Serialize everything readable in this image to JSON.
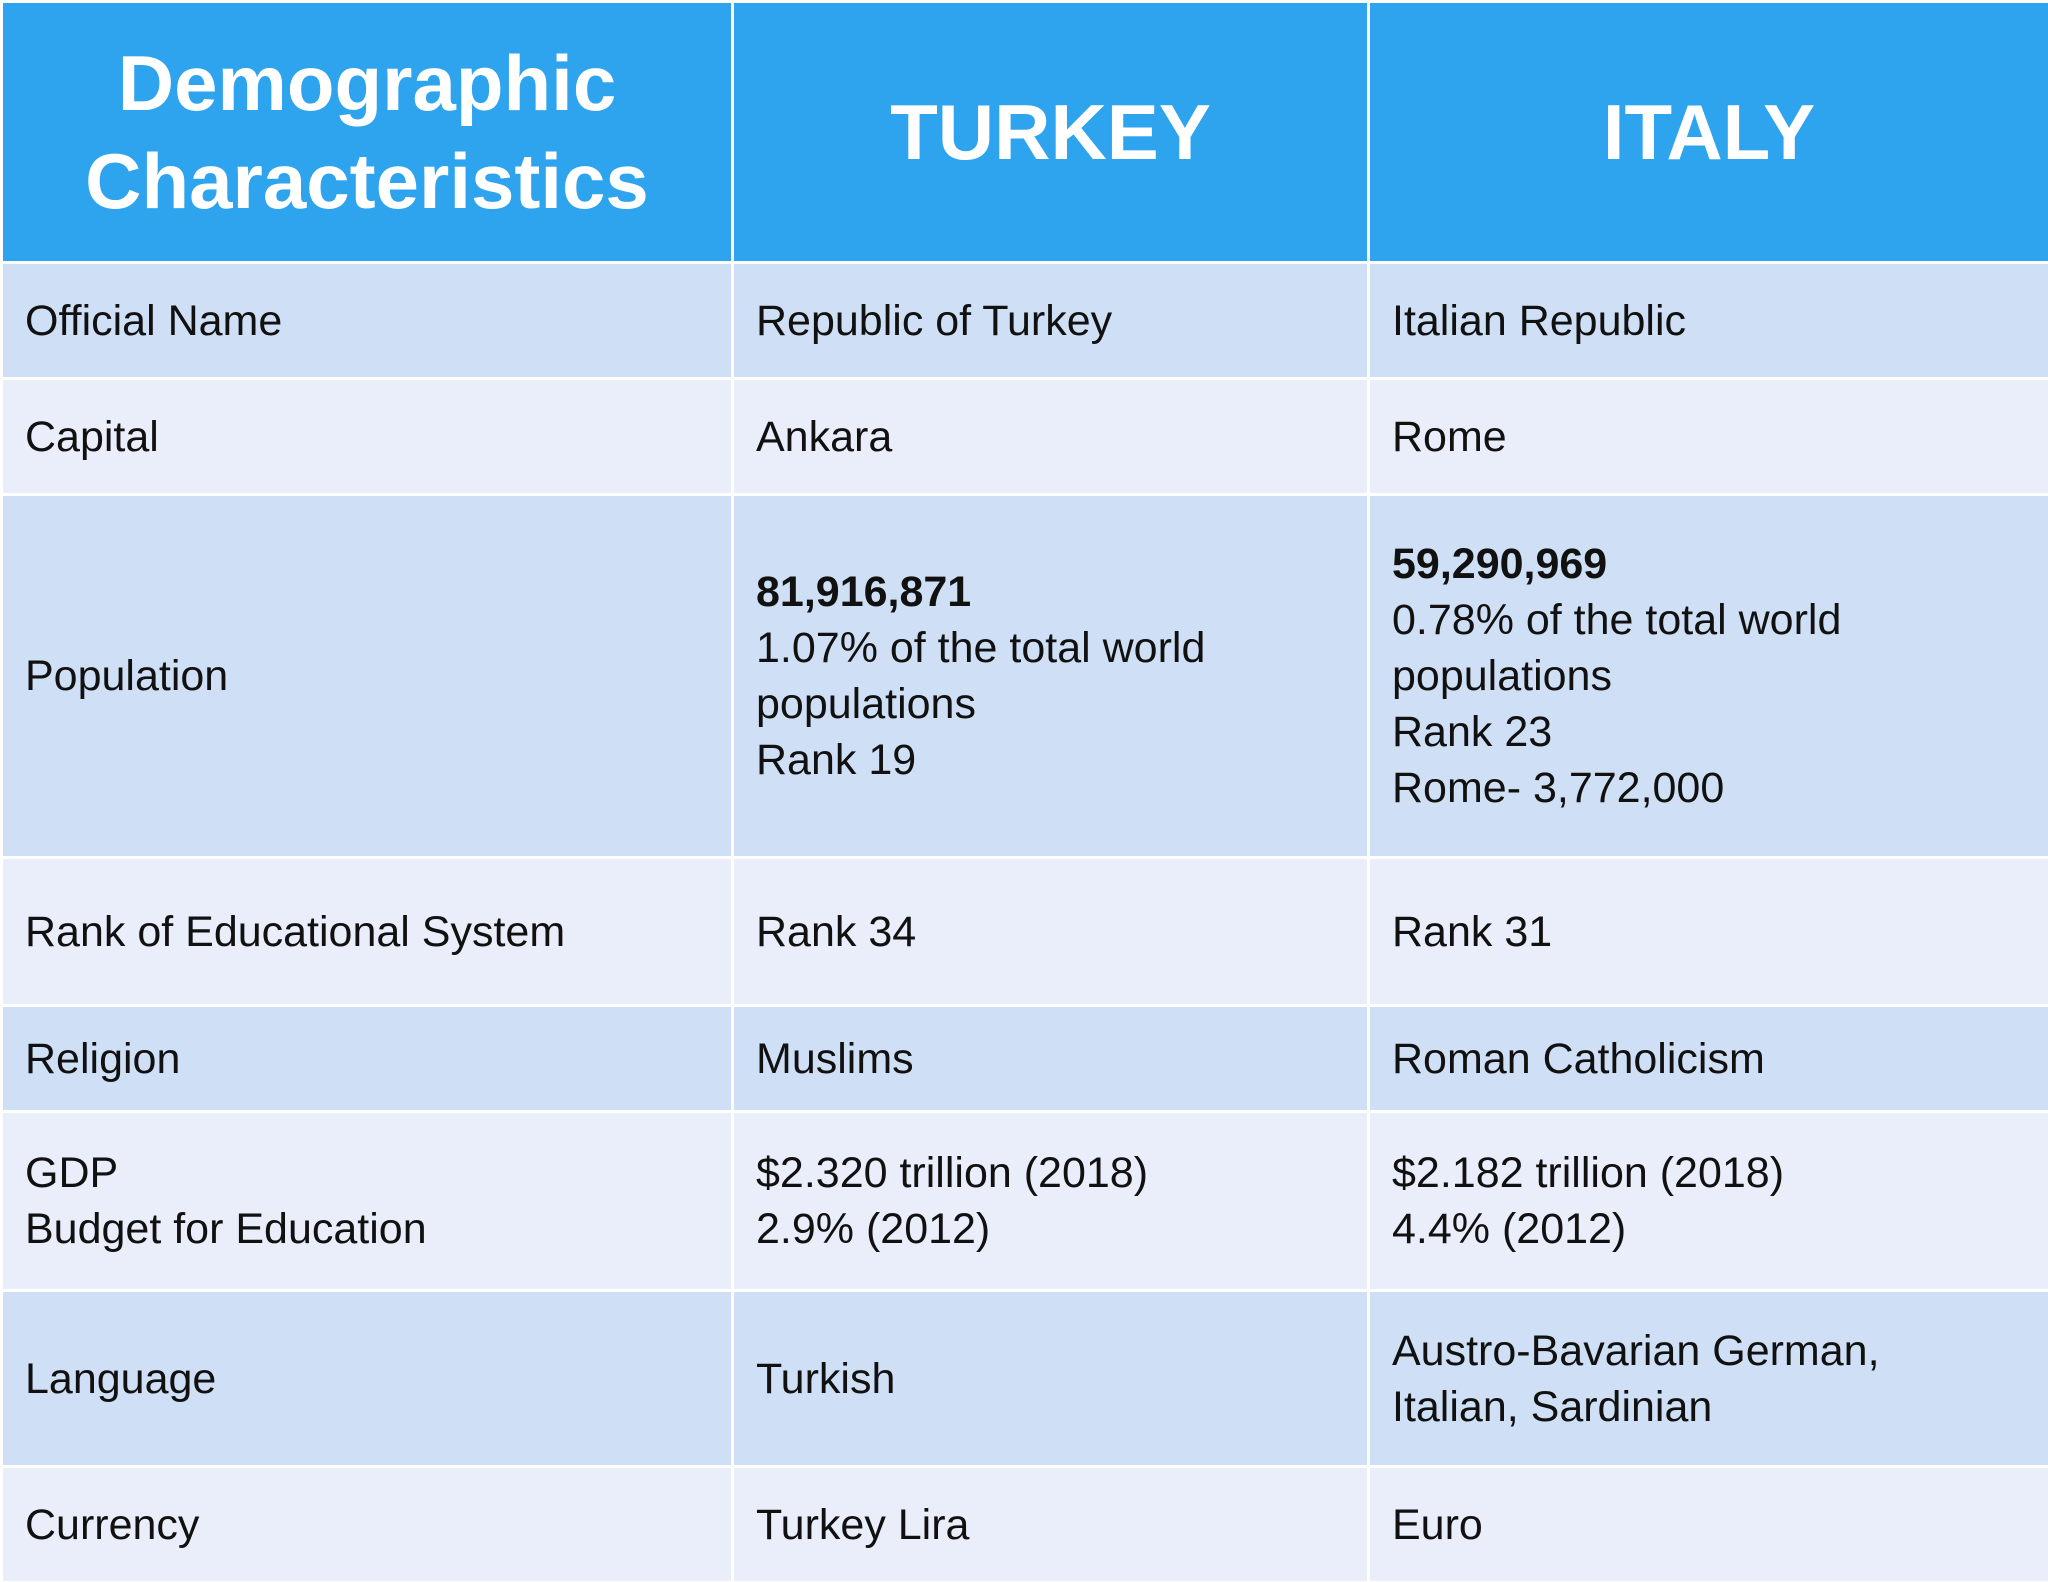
{
  "table": {
    "header": [
      "Demographic Characteristics",
      "TURKEY",
      "ITALY"
    ],
    "rows": [
      [
        [
          "Official Name"
        ],
        [
          "Republic of Turkey"
        ],
        [
          "Italian Republic"
        ]
      ],
      [
        [
          "Capital"
        ],
        [
          "Ankara"
        ],
        [
          "Rome"
        ]
      ],
      [
        [
          "Population"
        ],
        [
          "81,916,871",
          "1.07% of the total world",
          "populations",
          "Rank 19"
        ],
        [
          "59,290,969",
          "0.78% of the total world",
          "populations",
          "Rank 23",
          "Rome- 3,772,000"
        ]
      ],
      [
        [
          "Rank of Educational System"
        ],
        [
          "Rank 34"
        ],
        [
          "Rank 31"
        ]
      ],
      [
        [
          "Religion"
        ],
        [
          "Muslims"
        ],
        [
          "Roman Catholicism"
        ]
      ],
      [
        [
          "GDP",
          "Budget for Education"
        ],
        [
          "$2.320 trillion (2018)",
          "2.9% (2012)"
        ],
        [
          "$2.182 trillion (2018)",
          "4.4% (2012)"
        ]
      ],
      [
        [
          "Language"
        ],
        [
          "Turkish"
        ],
        [
          "Austro-Bavarian German,",
          "Italian, Sardinian"
        ]
      ],
      [
        [
          "Currency"
        ],
        [
          "Turkey Lira"
        ],
        [
          "Euro"
        ]
      ]
    ]
  }
}
